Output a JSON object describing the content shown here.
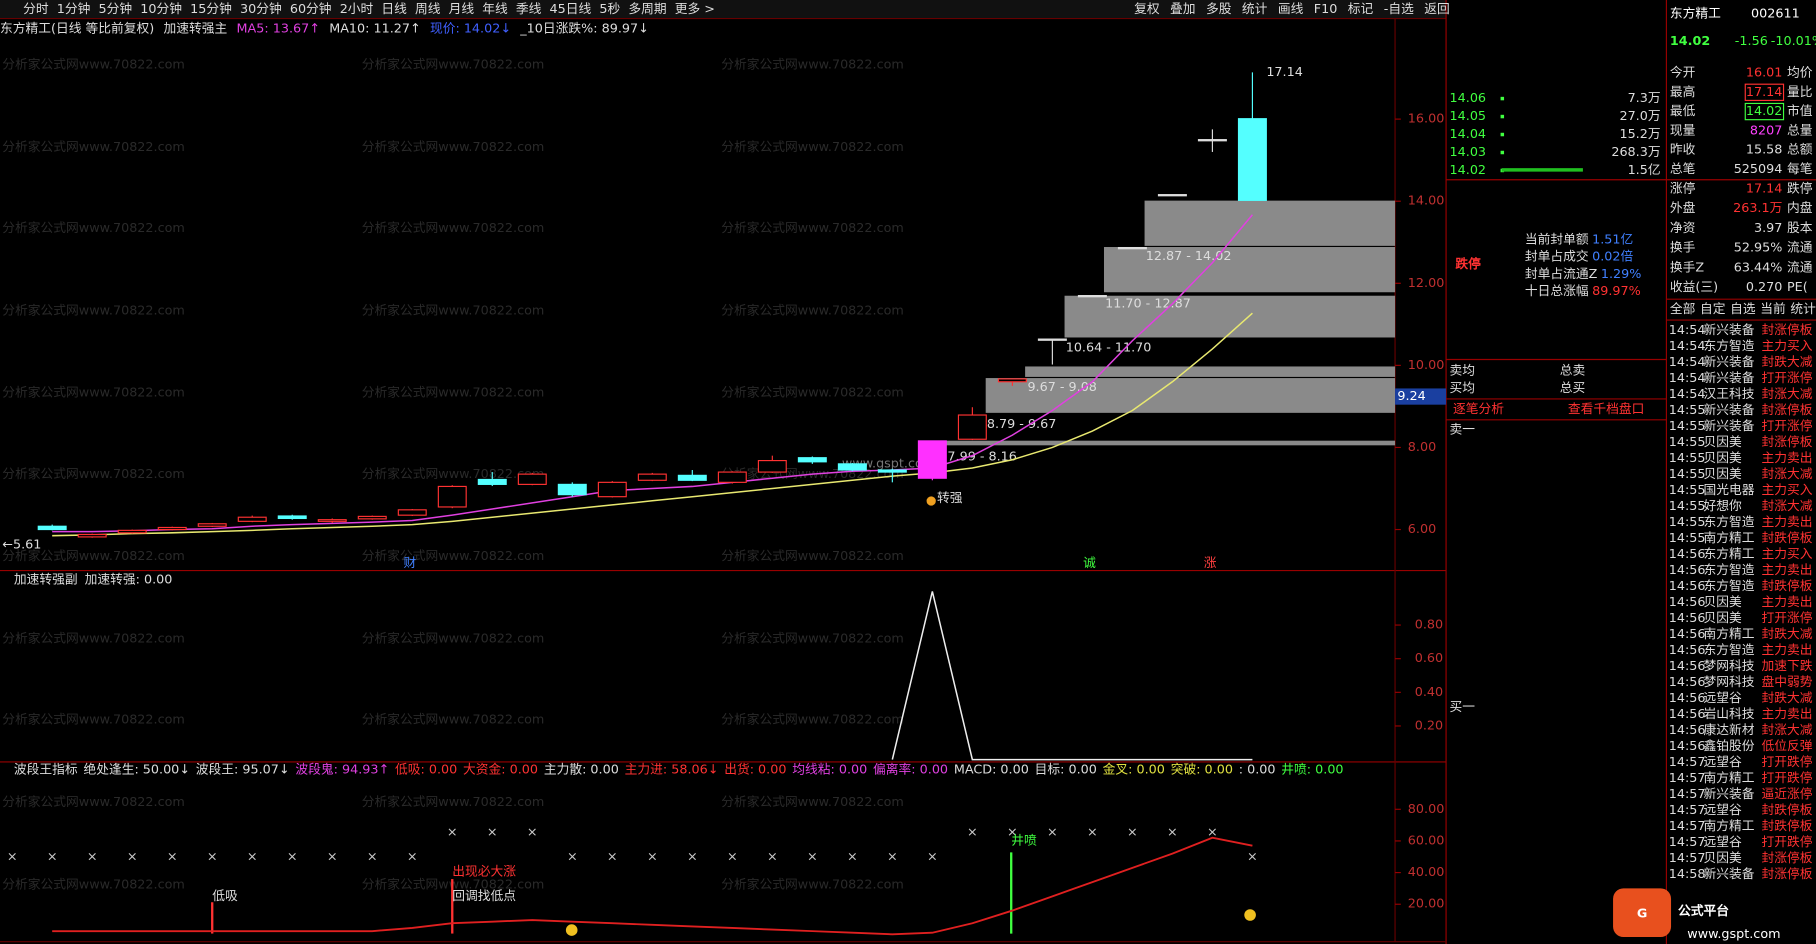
{
  "toolbar": {
    "periods": [
      "分时",
      "1分钟",
      "5分钟",
      "10分钟",
      "15分钟",
      "30分钟",
      "60分钟",
      "2小时",
      "日线",
      "周线",
      "月线",
      "年线",
      "季线",
      "45日线",
      "5秒",
      "多周期",
      "更多 >"
    ],
    "buttons": [
      "复权",
      "叠加",
      "多股",
      "统计",
      "画线",
      "F10",
      "标记",
      "-自选",
      "返回"
    ]
  },
  "watermark": "分析家公式网www.70822.com",
  "site": "www.gspt.com",
  "logo": "公式平台",
  "main_panel": {
    "header": [
      "东方精工(日线 等比前复权)",
      "加速转强主",
      "MA5: 13.67↑",
      "MA10: 11.27↑",
      "现价: 14.02↓",
      "_10日涨跌%: 89.97↓"
    ],
    "ylim": [
      5,
      18.45
    ],
    "yticks": [
      {
        "value": 6,
        "label": "6.00"
      },
      {
        "value": 8,
        "label": "8.00"
      },
      {
        "value": 10,
        "label": "10.00"
      },
      {
        "value": 12,
        "label": "12.00"
      },
      {
        "value": 14,
        "label": "14.00"
      },
      {
        "value": 16,
        "label": "16.00"
      }
    ],
    "price_marker": {
      "value": 9.24,
      "label": "9.24"
    },
    "high_label": "17.14",
    "low_label": "←5.61",
    "signal_label": "转强",
    "event_labels": [
      "财",
      "诚",
      "涨"
    ],
    "range_labels": [
      "12.87 - 14.02",
      "11.70 - 12.87",
      "10.64 - 11.70",
      "9.67 - 9.08",
      "8.79 - 9.67",
      "7.99 - 8.16"
    ],
    "candles": {
      "open": [
        6.08,
        5.82,
        5.92,
        6.0,
        6.08,
        6.2,
        6.33,
        6.2,
        6.26,
        6.35,
        6.55,
        7.22,
        7.1,
        7.1,
        6.8,
        7.2,
        7.32,
        7.15,
        7.4,
        7.75,
        7.6,
        7.45,
        7.25,
        8.2,
        9.6,
        10.64,
        11.7,
        12.87,
        14.16,
        15.5,
        16.01
      ],
      "close": [
        6.0,
        5.88,
        5.98,
        6.05,
        6.14,
        6.3,
        6.27,
        6.24,
        6.32,
        6.48,
        7.05,
        7.1,
        7.35,
        6.85,
        7.15,
        7.35,
        7.2,
        7.4,
        7.68,
        7.65,
        7.45,
        7.4,
        8.16,
        8.79,
        9.67,
        10.64,
        11.7,
        12.87,
        14.16,
        15.5,
        14.02
      ],
      "high": [
        6.12,
        5.9,
        6.0,
        6.07,
        6.16,
        6.34,
        6.36,
        6.27,
        6.34,
        6.5,
        7.08,
        7.4,
        7.38,
        7.15,
        7.18,
        7.38,
        7.45,
        7.42,
        7.8,
        7.78,
        7.62,
        7.48,
        8.16,
        8.98,
        9.67,
        10.64,
        11.7,
        12.87,
        14.16,
        15.75,
        17.14
      ],
      "low": [
        5.98,
        5.8,
        5.9,
        5.98,
        6.06,
        6.18,
        6.24,
        6.16,
        6.24,
        6.33,
        6.52,
        7.06,
        7.08,
        6.8,
        6.78,
        7.18,
        7.18,
        7.12,
        7.38,
        7.6,
        7.42,
        7.15,
        7.2,
        8.18,
        9.5,
        10.02,
        11.7,
        12.87,
        14.16,
        15.2,
        14.02
      ]
    },
    "ma5": {
      "color": "#e040e0",
      "values": [
        5.95,
        5.95,
        5.97,
        6.0,
        6.02,
        6.08,
        6.12,
        6.15,
        6.18,
        6.22,
        6.35,
        6.5,
        6.65,
        6.8,
        6.95,
        7.0,
        7.05,
        7.15,
        7.25,
        7.35,
        7.42,
        7.45,
        7.5,
        7.8,
        8.3,
        8.9,
        9.6,
        10.6,
        11.5,
        12.5,
        13.67
      ]
    },
    "ma10": {
      "color": "#e8e870",
      "values": [
        5.85,
        5.87,
        5.9,
        5.92,
        5.95,
        5.98,
        6.02,
        6.05,
        6.08,
        6.12,
        6.2,
        6.3,
        6.4,
        6.5,
        6.6,
        6.7,
        6.8,
        6.9,
        7.0,
        7.1,
        7.2,
        7.3,
        7.38,
        7.5,
        7.7,
        8.0,
        8.4,
        8.9,
        9.6,
        10.4,
        11.27
      ]
    }
  },
  "sub_panel_1": {
    "header": [
      "加速转强副",
      "加速转强: 0.00"
    ],
    "ylim": [
      0,
      1.117
    ],
    "yticks": [
      {
        "value": 0.2,
        "label": "0.20"
      },
      {
        "value": 0.4,
        "label": "0.40"
      },
      {
        "value": 0.6,
        "label": "0.60"
      },
      {
        "value": 0.8,
        "label": "0.80"
      }
    ],
    "values": [
      null,
      null,
      null,
      null,
      null,
      null,
      null,
      null,
      null,
      null,
      null,
      null,
      null,
      null,
      null,
      null,
      null,
      null,
      null,
      null,
      null,
      0,
      1,
      0,
      0,
      0,
      0,
      0,
      0,
      0,
      0
    ]
  },
  "sub_panel_2": {
    "header": [
      "波段王指标",
      "绝处逢生: 50.00↓",
      "波段王: 95.07↓",
      "波段鬼: 94.93↑",
      "低吸: 0.00",
      "大资金: 0.00",
      "主力散: 0.00",
      "主力进: 58.06↓",
      "出货: 0.00",
      "均线粘: 0.00",
      "偏离率: 0.00",
      "MACD: 0.00",
      "目标: 0.00",
      "金叉: 0.00",
      "突破: 0.00",
      ": 0.00",
      "井喷: 0.00"
    ],
    "ylim": [
      0,
      109.2
    ],
    "yticks": [
      {
        "value": 20,
        "label": "20.00"
      },
      {
        "value": 40,
        "label": "40.00"
      },
      {
        "value": 60,
        "label": "60.00"
      },
      {
        "value": 80,
        "label": "80.00"
      }
    ],
    "labels": [
      "低吸",
      "出现必大涨",
      "回调找低点",
      "井喷"
    ],
    "values": [
      3,
      3,
      3,
      3,
      3,
      3,
      3,
      3,
      3,
      5,
      8,
      9,
      10,
      9,
      8,
      7,
      6,
      5,
      4,
      3,
      2,
      1,
      2,
      8,
      16,
      25,
      34,
      43,
      52,
      62,
      57
    ]
  },
  "order_book": {
    "rows": [
      [
        "14.06",
        "7.3万"
      ],
      [
        "14.05",
        "27.0万"
      ],
      [
        "14.04",
        "15.2万"
      ],
      [
        "14.03",
        "268.3万"
      ],
      [
        "14.02",
        "1.5亿"
      ]
    ],
    "status": "跌停",
    "info": [
      [
        "当前封单额",
        "1.51亿"
      ],
      [
        "封单占成交",
        "0.02倍"
      ],
      [
        "封单占流通Z",
        "1.29%"
      ],
      [
        "十日总涨幅",
        "89.97%"
      ]
    ],
    "summary": [
      "卖均",
      "总卖",
      "买均",
      "总买"
    ],
    "links": [
      "逐笔分析",
      "查看千档盘口"
    ],
    "sell1": "卖一",
    "buy1": "买一"
  },
  "quote": {
    "name": "东方精工",
    "code": "002611",
    "price": "14.02",
    "change": "-1.56",
    "change_pct": "-10.01%",
    "rows": [
      [
        "今开",
        "16.01",
        "均价"
      ],
      [
        "最高",
        "17.14",
        "量比"
      ],
      [
        "最低",
        "14.02",
        "市值"
      ],
      [
        "现量",
        "8207",
        "总量"
      ],
      [
        "昨收",
        "15.58",
        "总额"
      ],
      [
        "总笔",
        "525094",
        "每笔"
      ],
      [
        "涨停",
        "17.14",
        "跌停"
      ],
      [
        "外盘",
        "263.1万",
        "内盘"
      ],
      [
        "净资",
        "3.97",
        "股本"
      ],
      [
        "换手",
        "52.95%",
        "流通"
      ],
      [
        "换手Z",
        "63.44%",
        "流通"
      ],
      [
        "收益(三)",
        "0.270",
        "PE("
      ]
    ],
    "tabs": [
      "全部",
      "自定",
      "自选",
      "当前",
      "统计"
    ]
  },
  "tick_list": [
    [
      "14:54",
      "新兴装备",
      "封涨停板"
    ],
    [
      "14:54",
      "东方智造",
      "主力买入"
    ],
    [
      "14:54",
      "新兴装备",
      "封跌大减"
    ],
    [
      "14:54",
      "新兴装备",
      "打开涨停"
    ],
    [
      "14:54",
      "汉王科技",
      "封涨大减"
    ],
    [
      "14:55",
      "新兴装备",
      "封涨停板"
    ],
    [
      "14:55",
      "新兴装备",
      "打开涨停"
    ],
    [
      "14:55",
      "贝因美",
      "封涨停板"
    ],
    [
      "14:55",
      "贝因美",
      "主力卖出"
    ],
    [
      "14:55",
      "贝因美",
      "封涨大减"
    ],
    [
      "14:55",
      "国光电器",
      "主力买入"
    ],
    [
      "14:55",
      "好想你",
      "封涨大减"
    ],
    [
      "14:55",
      "东方智造",
      "主力卖出"
    ],
    [
      "14:55",
      "南方精工",
      "封跌停板"
    ],
    [
      "14:56",
      "东方精工",
      "主力买入"
    ],
    [
      "14:56",
      "东方智造",
      "主力卖出"
    ],
    [
      "14:56",
      "东方智造",
      "封跌停板"
    ],
    [
      "14:56",
      "贝因美",
      "主力卖出"
    ],
    [
      "14:56",
      "贝因美",
      "打开涨停"
    ],
    [
      "14:56",
      "南方精工",
      "封跌大减"
    ],
    [
      "14:56",
      "东方智造",
      "主力卖出"
    ],
    [
      "14:56",
      "梦网科技",
      "加速下跌"
    ],
    [
      "14:56",
      "梦网科技",
      "盘中弱势"
    ],
    [
      "14:56",
      "远望谷",
      "封跌大减"
    ],
    [
      "14:56",
      "岩山科技",
      "主力卖出"
    ],
    [
      "14:56",
      "康达新材",
      "封涨大减"
    ],
    [
      "14:56",
      "鑫铂股份",
      "低位反弹"
    ],
    [
      "14:57",
      "远望谷",
      "打开跌停"
    ],
    [
      "14:57",
      "南方精工",
      "打开跌停"
    ],
    [
      "14:57",
      "新兴装备",
      "逼近涨停"
    ],
    [
      "14:57",
      "远望谷",
      "封跌停板"
    ],
    [
      "14:57",
      "南方精工",
      "封跌停板"
    ],
    [
      "14:57",
      "远望谷",
      "打开跌停"
    ],
    [
      "14:57",
      "贝因美",
      "封涨停板"
    ],
    [
      "14:58",
      "新兴装备",
      "封涨停板"
    ]
  ]
}
